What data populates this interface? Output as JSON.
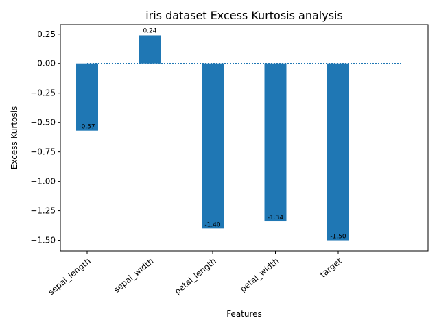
{
  "chart_data": {
    "type": "bar",
    "title": "iris dataset Excess Kurtosis analysis",
    "xlabel": "Features",
    "ylabel": "Excess Kurtosis",
    "categories": [
      "sepal_length",
      "sepal_width",
      "petal_length",
      "petal_width",
      "target"
    ],
    "values": [
      -0.57,
      0.24,
      -1.4,
      -1.34,
      -1.5
    ],
    "value_labels": [
      "-0.57",
      "0.24",
      "-1.40",
      "-1.34",
      "-1.50"
    ],
    "ylim": [
      -1.59,
      0.33
    ],
    "yticks": [
      -1.5,
      -1.25,
      -1.0,
      -0.75,
      -0.5,
      -0.25,
      0.0,
      0.25
    ],
    "ytick_labels": [
      "−1.50",
      "−1.25",
      "−1.00",
      "−0.75",
      "−0.50",
      "−0.25",
      "0.00",
      "0.25"
    ],
    "reference_line": {
      "y": 0,
      "style": "dotted"
    },
    "grid": false,
    "legend": "none",
    "bar_color": "#1f77b4"
  }
}
